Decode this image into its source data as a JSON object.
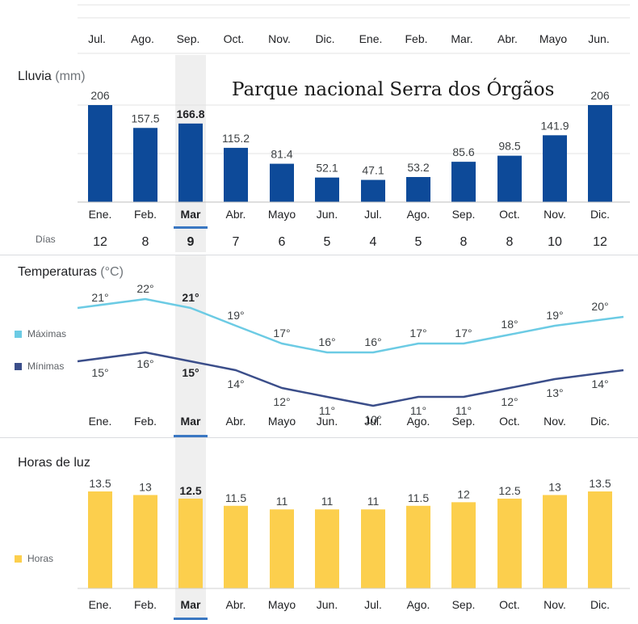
{
  "colors": {
    "rain_bar": "#0d4a99",
    "max_line": "#6ccbe4",
    "min_line": "#3b4e8a",
    "sun_bar": "#fccf4d",
    "highlight": "#efefef",
    "selected_underline": "#3a77c2",
    "grid": "#e3e3e3",
    "axis_text": "#202124",
    "value_text": "#3c4043",
    "muted_text": "#70757a"
  },
  "top_strip": {
    "months": [
      "Jul.",
      "Ago.",
      "Sep.",
      "Oct.",
      "Nov.",
      "Dic.",
      "Ene.",
      "Feb.",
      "Mar.",
      "Abr.",
      "Mayo",
      "Jun."
    ]
  },
  "overlay_title": "Parque nacional Serra dos Órgãos",
  "selected_index": 2,
  "chart_data": [
    {
      "type": "bar",
      "id": "rain",
      "title": "Lluvia",
      "unit": "(mm)",
      "categories": [
        "Ene.",
        "Feb.",
        "Mar",
        "Abr.",
        "Mayo",
        "Jun.",
        "Jul.",
        "Ago.",
        "Sep.",
        "Oct.",
        "Nov.",
        "Dic."
      ],
      "values": [
        206,
        157.5,
        166.8,
        115.2,
        81.4,
        52.1,
        47.1,
        53.2,
        85.6,
        98.5,
        141.9,
        206
      ],
      "value_labels": [
        "206",
        "157.5",
        "166.8",
        "115.2",
        "81.4",
        "52.1",
        "47.1",
        "53.2",
        "85.6",
        "98.5",
        "141.9",
        "206"
      ],
      "days_label": "Días",
      "days": [
        "12",
        "8",
        "9",
        "7",
        "6",
        "5",
        "4",
        "5",
        "8",
        "8",
        "10",
        "12"
      ],
      "ylim": [
        0,
        206
      ]
    },
    {
      "type": "line",
      "id": "temperature",
      "title": "Temperaturas",
      "unit": "(°C)",
      "categories": [
        "Ene.",
        "Feb.",
        "Mar",
        "Abr.",
        "Mayo",
        "Jun.",
        "Jul.",
        "Ago.",
        "Sep.",
        "Oct.",
        "Nov.",
        "Dic."
      ],
      "series": [
        {
          "name": "Máximas",
          "values": [
            21,
            22,
            21,
            19,
            17,
            16,
            16,
            17,
            17,
            18,
            19,
            20
          ],
          "value_labels": [
            "21°",
            "22°",
            "21°",
            "19°",
            "17°",
            "16°",
            "16°",
            "17°",
            "17°",
            "18°",
            "19°",
            "20°"
          ]
        },
        {
          "name": "Mínimas",
          "values": [
            15,
            16,
            15,
            14,
            12,
            11,
            10,
            11,
            11,
            12,
            13,
            14
          ],
          "value_labels": [
            "15°",
            "16°",
            "15°",
            "14°",
            "12°",
            "11°",
            "10°",
            "11°",
            "11°",
            "12°",
            "13°",
            "14°"
          ]
        }
      ]
    },
    {
      "type": "bar",
      "id": "daylight",
      "title": "Horas de luz",
      "legend": "Horas",
      "categories": [
        "Ene.",
        "Feb.",
        "Mar",
        "Abr.",
        "Mayo",
        "Jun.",
        "Jul.",
        "Ago.",
        "Sep.",
        "Oct.",
        "Nov.",
        "Dic."
      ],
      "values": [
        13.5,
        13,
        12.5,
        11.5,
        11,
        11,
        11,
        11.5,
        12,
        12.5,
        13,
        13.5
      ],
      "value_labels": [
        "13.5",
        "13",
        "12.5",
        "11.5",
        "11",
        "11",
        "11",
        "11.5",
        "12",
        "12.5",
        "13",
        "13.5"
      ],
      "ylim": [
        0,
        13.5
      ]
    }
  ]
}
